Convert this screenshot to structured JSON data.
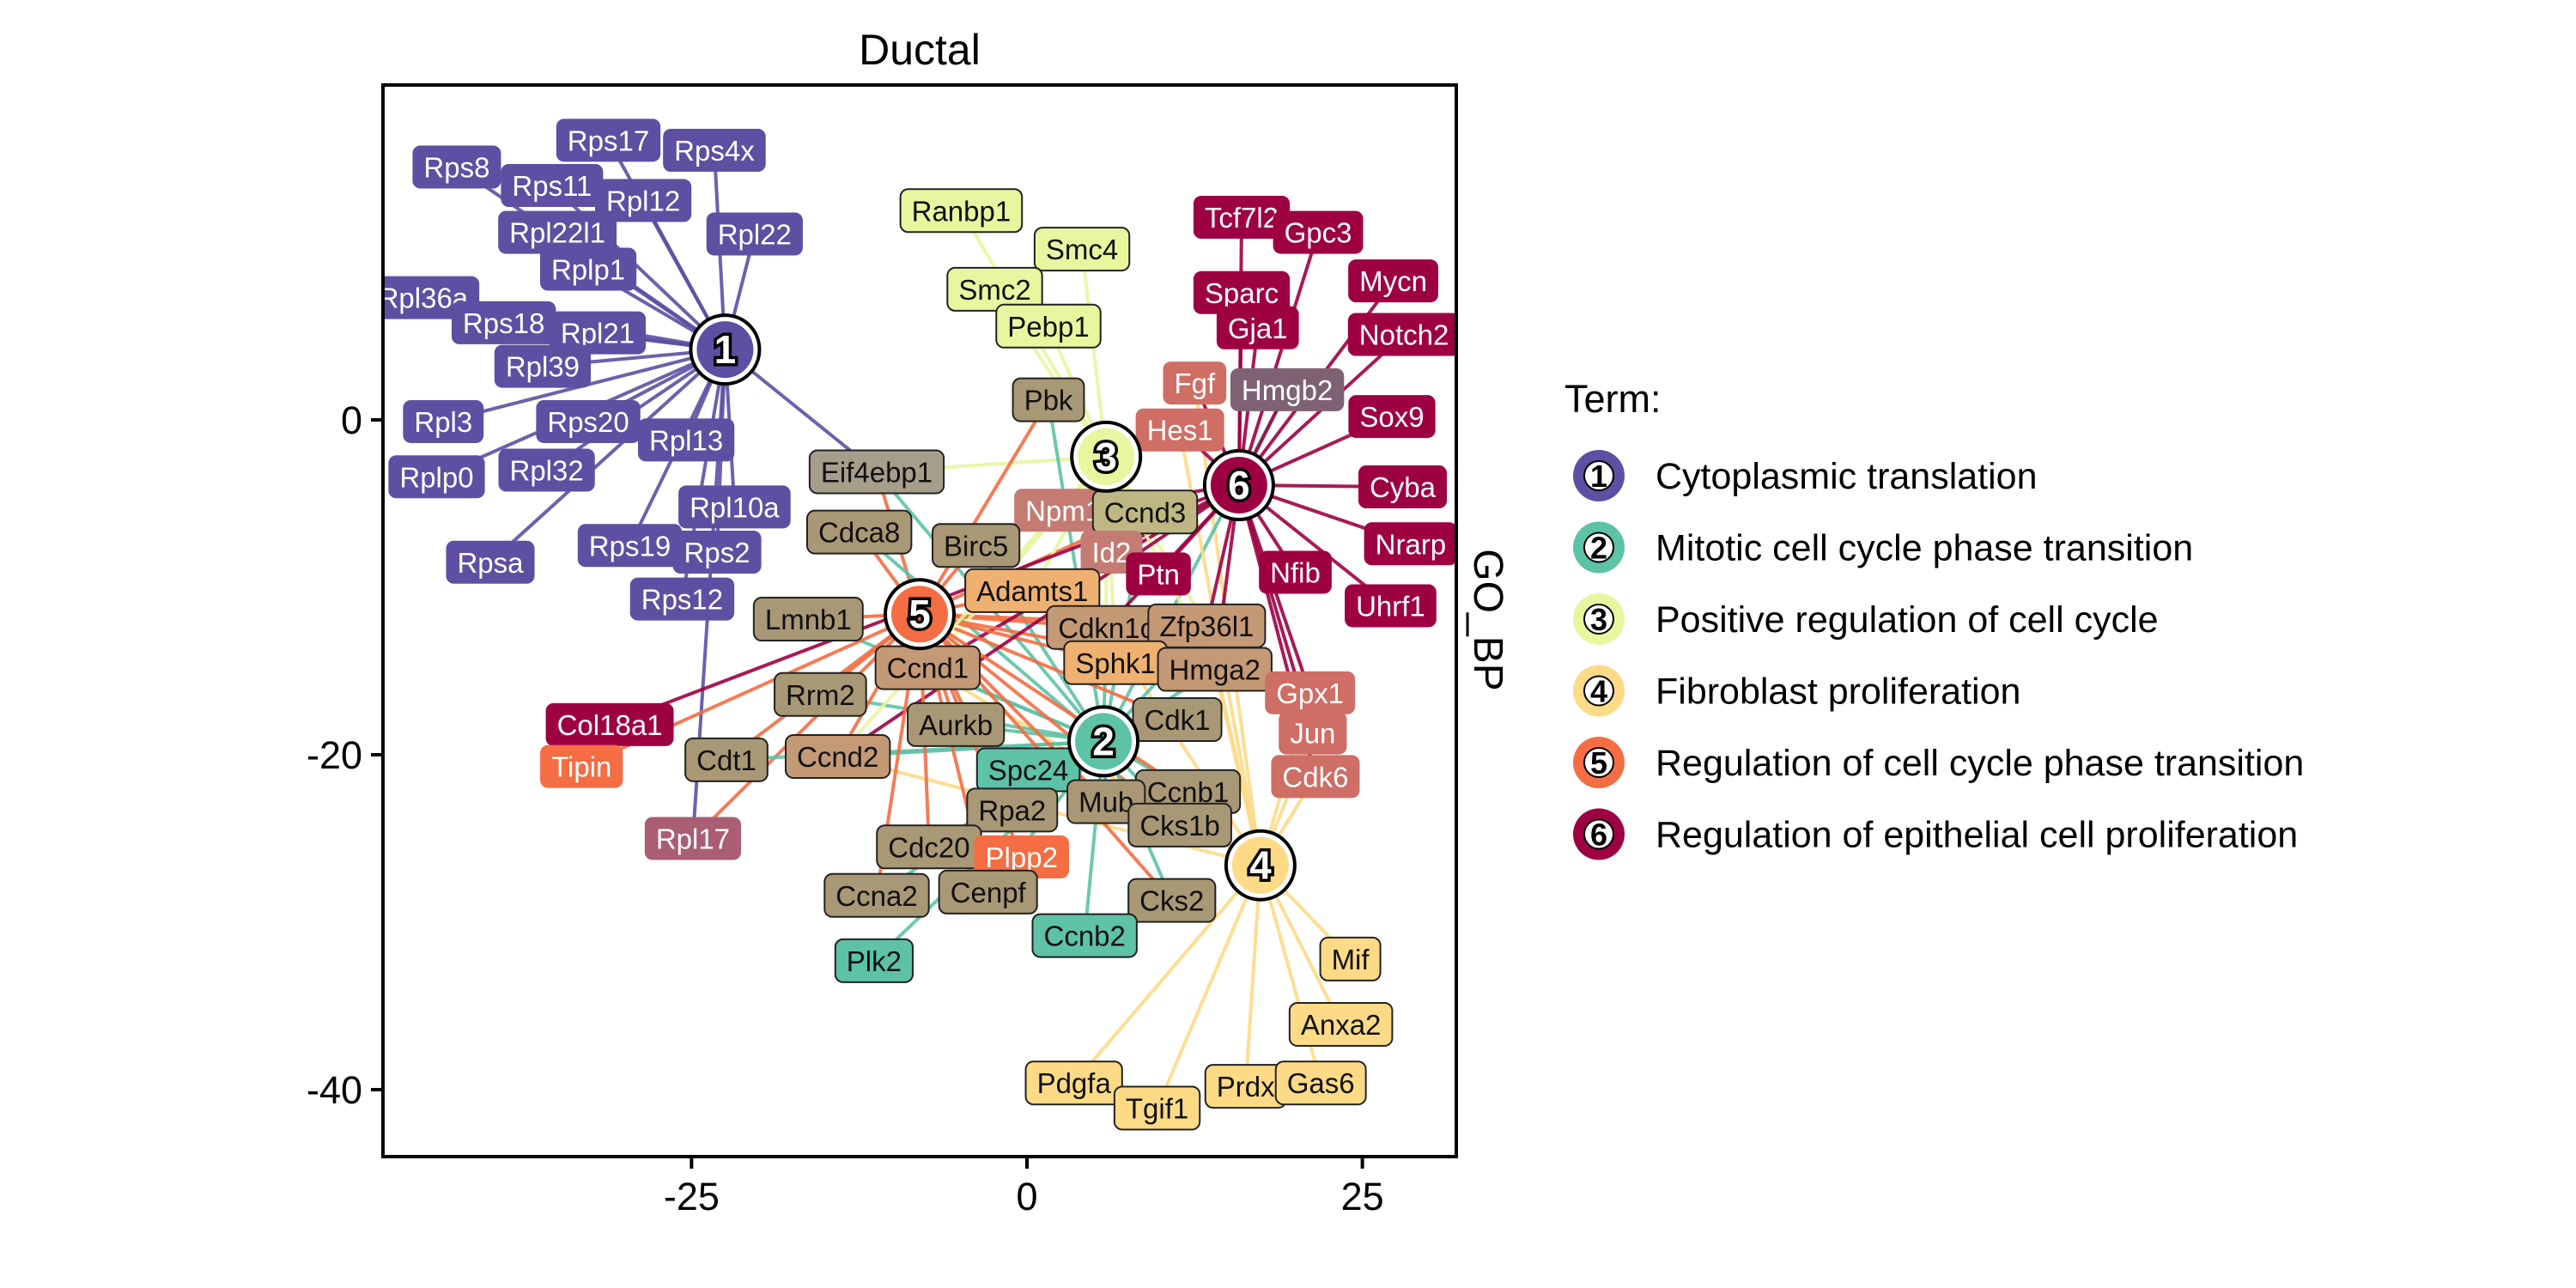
{
  "chart_data": {
    "type": "network",
    "title": "Ductal",
    "strip_label": "GO_BP",
    "xlim": [
      -48,
      32
    ],
    "ylim": [
      -44,
      20
    ],
    "x_ticks": [
      -25,
      0,
      25
    ],
    "x_tick_labels": [
      "-25",
      "0",
      "25"
    ],
    "y_ticks": [
      0,
      -20,
      -40
    ],
    "y_tick_labels": [
      "0",
      "-20",
      "-40"
    ],
    "legend": {
      "title": "Term:",
      "placement": "right",
      "entries": [
        {
          "id": 1,
          "label": "Cytoplasmic translation",
          "color": "#5E4FA2"
        },
        {
          "id": 2,
          "label": "Mitotic cell cycle phase transition",
          "color": "#5DC2A6"
        },
        {
          "id": 3,
          "label": "Positive regulation of cell cycle",
          "color": "#E9F59F"
        },
        {
          "id": 4,
          "label": "Fibroblast proliferation",
          "color": "#FDDA86"
        },
        {
          "id": 5,
          "label": "Regulation of cell cycle phase transition",
          "color": "#F46D43"
        },
        {
          "id": 6,
          "label": "Regulation of epithelial cell proliferation",
          "color": "#9E0142"
        }
      ]
    },
    "hubs": [
      {
        "id": 1,
        "x": -22.5,
        "y": 4.2
      },
      {
        "id": 2,
        "x": 5.7,
        "y": -19.2
      },
      {
        "id": 3,
        "x": 5.9,
        "y": -2.2
      },
      {
        "id": 4,
        "x": 17.4,
        "y": -26.6
      },
      {
        "id": 5,
        "x": -8.0,
        "y": -11.6
      },
      {
        "id": 6,
        "x": 15.8,
        "y": -3.9
      }
    ],
    "genes": [
      {
        "label": "Rps8",
        "x": -42.5,
        "y": 15.1,
        "terms": [
          1
        ]
      },
      {
        "label": "Rps17",
        "x": -31.2,
        "y": 16.7,
        "terms": [
          1
        ]
      },
      {
        "label": "Rps4x",
        "x": -23.3,
        "y": 16.1,
        "terms": [
          1
        ]
      },
      {
        "label": "Rps11",
        "x": -35.4,
        "y": 14.0,
        "terms": [
          1
        ]
      },
      {
        "label": "Rpl12",
        "x": -28.6,
        "y": 13.1,
        "terms": [
          1
        ]
      },
      {
        "label": "Rpl22l1",
        "x": -35.0,
        "y": 11.2,
        "terms": [
          1
        ]
      },
      {
        "label": "Rpl22",
        "x": -20.3,
        "y": 11.1,
        "terms": [
          1
        ]
      },
      {
        "label": "Rplp1",
        "x": -32.7,
        "y": 9.0,
        "terms": [
          1
        ]
      },
      {
        "label": "Rpl36a",
        "x": -45.0,
        "y": 7.3,
        "terms": [
          1
        ]
      },
      {
        "label": "Rps18",
        "x": -39.0,
        "y": 5.8,
        "terms": [
          1
        ]
      },
      {
        "label": "Rpl21",
        "x": -32.0,
        "y": 5.2,
        "terms": [
          1
        ]
      },
      {
        "label": "Rpl39",
        "x": -36.1,
        "y": 3.2,
        "terms": [
          1
        ]
      },
      {
        "label": "Rpl3",
        "x": -43.5,
        "y": -0.1,
        "terms": [
          1
        ]
      },
      {
        "label": "Rps20",
        "x": -32.7,
        "y": -0.1,
        "terms": [
          1
        ]
      },
      {
        "label": "Rpl13",
        "x": -25.4,
        "y": -1.2,
        "terms": [
          1
        ]
      },
      {
        "label": "Rplp0",
        "x": -44.0,
        "y": -3.4,
        "terms": [
          1
        ]
      },
      {
        "label": "Rpl32",
        "x": -35.8,
        "y": -3.0,
        "terms": [
          1
        ]
      },
      {
        "label": "Rpl10a",
        "x": -21.8,
        "y": -5.2,
        "terms": [
          1
        ]
      },
      {
        "label": "Rps19",
        "x": -29.6,
        "y": -7.5,
        "terms": [
          1
        ]
      },
      {
        "label": "Rps2",
        "x": -23.1,
        "y": -7.9,
        "terms": [
          1
        ]
      },
      {
        "label": "Rpsa",
        "x": -40.0,
        "y": -8.5,
        "terms": [
          1
        ]
      },
      {
        "label": "Rps12",
        "x": -25.7,
        "y": -10.7,
        "terms": [
          1
        ]
      },
      {
        "label": "Eif4ebp1",
        "x": -11.2,
        "y": -3.1,
        "terms": [
          1,
          2,
          3,
          5
        ]
      },
      {
        "label": "Rpl17",
        "x": -24.9,
        "y": -25.0,
        "terms": [
          1,
          5
        ]
      },
      {
        "label": "Ranbp1",
        "x": -4.9,
        "y": 12.5,
        "terms": [
          3
        ]
      },
      {
        "label": "Smc4",
        "x": 4.1,
        "y": 10.2,
        "terms": [
          3
        ]
      },
      {
        "label": "Smc2",
        "x": -2.4,
        "y": 7.8,
        "terms": [
          3
        ]
      },
      {
        "label": "Pebp1",
        "x": 1.6,
        "y": 5.6,
        "terms": [
          3
        ]
      },
      {
        "label": "Tcf7l2",
        "x": 16.0,
        "y": 12.1,
        "terms": [
          6
        ]
      },
      {
        "label": "Gpc3",
        "x": 21.7,
        "y": 11.2,
        "terms": [
          6
        ]
      },
      {
        "label": "Mycn",
        "x": 27.3,
        "y": 8.3,
        "terms": [
          6
        ]
      },
      {
        "label": "Sparc",
        "x": 16.0,
        "y": 7.6,
        "terms": [
          6
        ]
      },
      {
        "label": "Gja1",
        "x": 17.2,
        "y": 5.5,
        "terms": [
          6
        ]
      },
      {
        "label": "Notch2",
        "x": 28.1,
        "y": 5.1,
        "terms": [
          6
        ]
      },
      {
        "label": "Fgf",
        "x": 12.5,
        "y": 2.2,
        "terms": [
          4,
          6
        ]
      },
      {
        "label": "Hmgb2",
        "x": 19.4,
        "y": 1.8,
        "terms": [
          2,
          6
        ]
      },
      {
        "label": "Sox9",
        "x": 27.2,
        "y": 0.2,
        "terms": [
          6
        ]
      },
      {
        "label": "Pbk",
        "x": 1.6,
        "y": 1.2,
        "terms": [
          2,
          5
        ]
      },
      {
        "label": "Hes1",
        "x": 11.4,
        "y": -0.6,
        "terms": [
          4,
          6
        ]
      },
      {
        "label": "Cyba",
        "x": 28.0,
        "y": -4.0,
        "terms": [
          6
        ]
      },
      {
        "label": "Npm1",
        "x": 2.7,
        "y": -5.4,
        "terms": [
          3,
          6
        ]
      },
      {
        "label": "Ccnd3",
        "x": 8.8,
        "y": -5.5,
        "terms": [
          2,
          3,
          5
        ]
      },
      {
        "label": "Nrarp",
        "x": 28.6,
        "y": -7.4,
        "terms": [
          6
        ]
      },
      {
        "label": "Cdca8",
        "x": -12.5,
        "y": -6.7,
        "terms": [
          2,
          5
        ]
      },
      {
        "label": "Birc5",
        "x": -3.8,
        "y": -7.5,
        "terms": [
          2,
          5
        ]
      },
      {
        "label": "Id2",
        "x": 6.3,
        "y": -7.9,
        "terms": [
          3,
          6
        ]
      },
      {
        "label": "Ptn",
        "x": 9.8,
        "y": -9.2,
        "terms": [
          6
        ]
      },
      {
        "label": "Nfib",
        "x": 20.0,
        "y": -9.1,
        "terms": [
          6
        ]
      },
      {
        "label": "Adamts1",
        "x": 0.4,
        "y": -10.2,
        "terms": [
          3,
          5
        ]
      },
      {
        "label": "Uhrf1",
        "x": 27.1,
        "y": -11.1,
        "terms": [
          6
        ]
      },
      {
        "label": "Lmnb1",
        "x": -16.3,
        "y": -11.9,
        "terms": [
          2,
          5
        ]
      },
      {
        "label": "Cdkn1c",
        "x": 5.9,
        "y": -12.4,
        "terms": [
          2,
          3,
          4,
          5,
          6
        ]
      },
      {
        "label": "Zfp36l1",
        "x": 13.4,
        "y": -12.3,
        "terms": [
          2,
          3,
          4,
          5,
          6
        ]
      },
      {
        "label": "Ccnd1",
        "x": -7.4,
        "y": -14.8,
        "terms": [
          2,
          3,
          4,
          5,
          6
        ]
      },
      {
        "label": "Sphk1",
        "x": 6.6,
        "y": -14.5,
        "terms": [
          3,
          5
        ]
      },
      {
        "label": "Hmga2",
        "x": 14.0,
        "y": -14.9,
        "terms": [
          2,
          3,
          4,
          5,
          6
        ]
      },
      {
        "label": "Rrm2",
        "x": -15.4,
        "y": -16.4,
        "terms": [
          2,
          5
        ]
      },
      {
        "label": "Gpx1",
        "x": 21.1,
        "y": -16.3,
        "terms": [
          4,
          6
        ]
      },
      {
        "label": "Col18a1",
        "x": -31.1,
        "y": -18.2,
        "terms": [
          6
        ]
      },
      {
        "label": "Aurkb",
        "x": -5.3,
        "y": -18.2,
        "terms": [
          2,
          5
        ]
      },
      {
        "label": "Cdk1",
        "x": 11.2,
        "y": -17.9,
        "terms": [
          2,
          5
        ]
      },
      {
        "label": "Jun",
        "x": 21.3,
        "y": -18.7,
        "terms": [
          4,
          6
        ]
      },
      {
        "label": "Cdt1",
        "x": -22.4,
        "y": -20.3,
        "terms": [
          2,
          5
        ]
      },
      {
        "label": "Ccnd2",
        "x": -14.1,
        "y": -20.1,
        "terms": [
          2,
          3,
          4,
          5,
          6
        ]
      },
      {
        "label": "Tipin",
        "x": -33.2,
        "y": -20.7,
        "terms": [
          5
        ]
      },
      {
        "label": "Spc24",
        "x": 0.1,
        "y": -20.9,
        "terms": [
          2
        ]
      },
      {
        "label": "Cdk6",
        "x": 21.5,
        "y": -21.3,
        "terms": [
          4,
          6
        ]
      },
      {
        "label": "Ccnb1",
        "x": 12.0,
        "y": -22.2,
        "terms": [
          2,
          5
        ]
      },
      {
        "label": "Mub",
        "x": 5.9,
        "y": -22.8,
        "terms": [
          2,
          5
        ]
      },
      {
        "label": "Rpa2",
        "x": -1.1,
        "y": -23.3,
        "terms": [
          2,
          5
        ]
      },
      {
        "label": "Cks1b",
        "x": 11.4,
        "y": -24.2,
        "terms": [
          2,
          5
        ]
      },
      {
        "label": "Cdc20",
        "x": -7.3,
        "y": -25.5,
        "terms": [
          2,
          5
        ]
      },
      {
        "label": "Plpp2",
        "x": -0.4,
        "y": -26.1,
        "terms": [
          5
        ]
      },
      {
        "label": "Ccna2",
        "x": -11.2,
        "y": -28.4,
        "terms": [
          2,
          5
        ]
      },
      {
        "label": "Cenpf",
        "x": -2.9,
        "y": -28.2,
        "terms": [
          2,
          5
        ]
      },
      {
        "label": "Cks2",
        "x": 10.8,
        "y": -28.7,
        "terms": [
          2,
          5
        ]
      },
      {
        "label": "Ccnb2",
        "x": 4.3,
        "y": -30.8,
        "terms": [
          2
        ]
      },
      {
        "label": "Plk2",
        "x": -11.4,
        "y": -32.3,
        "terms": [
          2
        ]
      },
      {
        "label": "Mif",
        "x": 24.1,
        "y": -32.2,
        "terms": [
          4
        ]
      },
      {
        "label": "Anxa2",
        "x": 23.4,
        "y": -36.1,
        "terms": [
          4
        ]
      },
      {
        "label": "Pdgfa",
        "x": 3.5,
        "y": -39.6,
        "terms": [
          4
        ]
      },
      {
        "label": "Tgif1",
        "x": 9.7,
        "y": -41.1,
        "terms": [
          4
        ]
      },
      {
        "label": "Prdx",
        "x": 16.3,
        "y": -39.8,
        "terms": [
          4
        ]
      },
      {
        "label": "Gas6",
        "x": 21.9,
        "y": -39.6,
        "terms": [
          4
        ]
      }
    ]
  }
}
